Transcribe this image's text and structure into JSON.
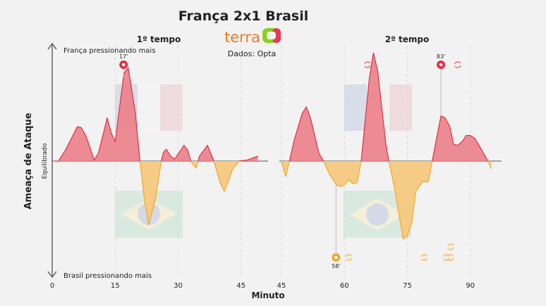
{
  "title": "França 2x1 Brasil",
  "brand": "terra",
  "source": "Dados: Opta",
  "colors": {
    "france": "#e0303f",
    "france_fill": "#ec7f89",
    "brazil": "#f0a830",
    "brazil_fill": "#f6c67a",
    "axis": "#666666"
  },
  "chart_data": {
    "type": "area",
    "title": "França 2x1 Brasil",
    "xlabel": "Minuto",
    "ylabel": "Ameaça de Ataque",
    "zero_label": "Equilibrado",
    "top_label": "França pressionando mais",
    "bottom_label": "Brasil pressionando mais",
    "ylim": [
      -115,
      115
    ],
    "panels": [
      {
        "name": "1º tempo",
        "xlim": [
          0,
          49
        ],
        "ticks": [
          "0",
          "15",
          "30",
          "45"
        ],
        "tick_values": [
          0,
          15,
          30,
          45
        ],
        "x": [
          0,
          1.3,
          3,
          4.9,
          6,
          6.9,
          8,
          10,
          11,
          12.3,
          13.1,
          14.1,
          15,
          17.1,
          18.1,
          19.8,
          20.9,
          22,
          23,
          24.5,
          26,
          26.5,
          27.2,
          28.2,
          29.2,
          30.6,
          31.4,
          32.3,
          33,
          33.8,
          34.3,
          35.1,
          37,
          38.5,
          40,
          41,
          43,
          44.6,
          46.4,
          49
        ],
        "y": [
          0,
          -1,
          10,
          26,
          35,
          34,
          26,
          1,
          8,
          30,
          44,
          28,
          20,
          89,
          95,
          49,
          0,
          -40,
          -65,
          -40,
          0,
          9,
          12,
          5,
          2,
          11,
          16,
          11,
          0,
          -5,
          -7,
          5,
          16,
          0,
          -22,
          -31,
          -8,
          0,
          1,
          5
        ],
        "goals": [
          {
            "team": "França",
            "minute": 17,
            "label": "17'"
          }
        ],
        "subs": []
      },
      {
        "name": "2º tempo",
        "xlim": [
          45,
          95
        ],
        "ticks": [
          "45",
          "60",
          "75",
          "90"
        ],
        "tick_values": [
          45,
          60,
          75,
          90
        ],
        "x": [
          45,
          46,
          46.9,
          48,
          49.9,
          50.9,
          51.9,
          53.9,
          55,
          56.4,
          58.1,
          59.2,
          60,
          61,
          62,
          63,
          64,
          65.9,
          66.9,
          67.9,
          69.9,
          70.6,
          72.1,
          74,
          75,
          76,
          77,
          78.6,
          80,
          80.9,
          83,
          84,
          85.1,
          86,
          87,
          88.1,
          89,
          90,
          91.1,
          92.6,
          94.2,
          95
        ],
        "y": [
          0,
          -16,
          0,
          21,
          48,
          55,
          44,
          8,
          0,
          -13,
          -24,
          -26,
          -24,
          -19,
          -23,
          -22,
          0,
          83,
          110,
          92,
          16,
          0,
          -31,
          -79,
          -76,
          -63,
          -31,
          -21,
          -21,
          0,
          46,
          44,
          35,
          17,
          16,
          20,
          26,
          26,
          23,
          12,
          0,
          -8
        ],
        "goals": [
          {
            "team": "Brasil",
            "minute": 58,
            "label": "58'"
          },
          {
            "team": "França",
            "minute": 83,
            "label": "83'"
          }
        ],
        "subs": [
          {
            "team": "França",
            "minute": 65.5
          },
          {
            "team": "França",
            "minute": 87
          },
          {
            "team": "Brasil",
            "minute": 61
          },
          {
            "team": "Brasil",
            "minute": 79
          },
          {
            "team": "Brasil",
            "minute": 84.3
          },
          {
            "team": "Brasil",
            "minute": 85.3
          },
          {
            "team": "Brasil",
            "minute": 85.3,
            "stack": 1
          }
        ]
      }
    ]
  }
}
